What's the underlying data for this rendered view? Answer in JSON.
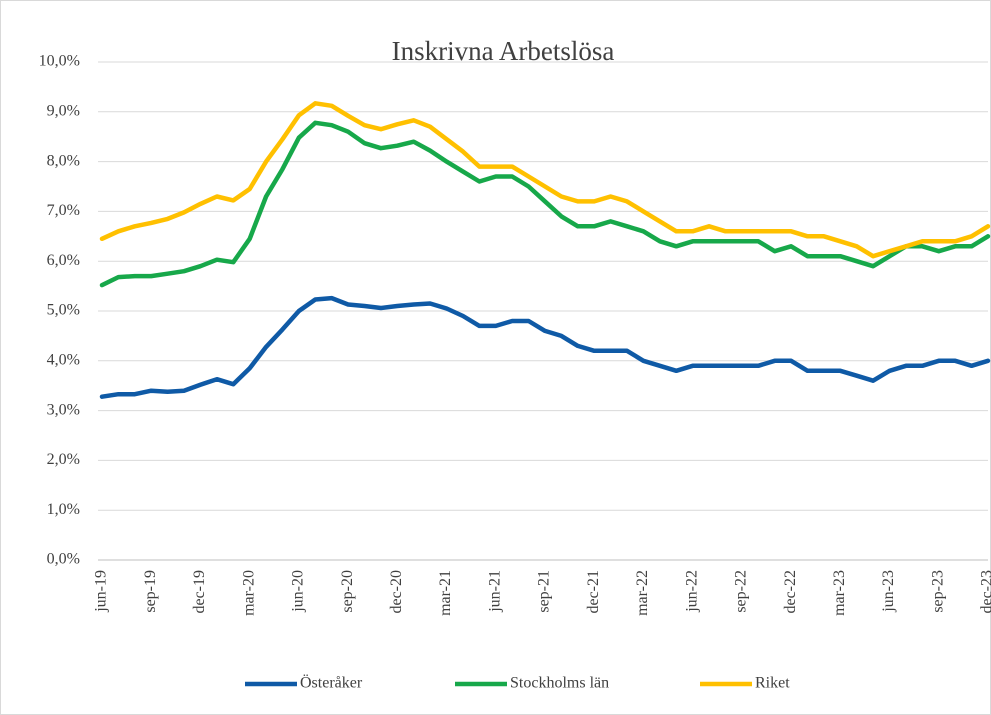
{
  "chart_data": {
    "type": "line",
    "title": "Inskrivna Arbetslösa",
    "categories": [
      "jun-19",
      null,
      null,
      "sep-19",
      null,
      null,
      "dec-19",
      null,
      null,
      "mar-20",
      null,
      null,
      "jun-20",
      null,
      null,
      "sep-20",
      null,
      null,
      "dec-20",
      null,
      null,
      "mar-21",
      null,
      null,
      "jun-21",
      null,
      null,
      "sep-21",
      null,
      null,
      "dec-21",
      null,
      null,
      "mar-22",
      null,
      null,
      "jun-22",
      null,
      null,
      "sep-22",
      null,
      null,
      "dec-22",
      null,
      null,
      "mar-23",
      null,
      null,
      "jun-23",
      null,
      null,
      "sep-23",
      null,
      null,
      "dec-23"
    ],
    "series": [
      {
        "name": "Österåker",
        "color": "#0f5aa6",
        "values": [
          3.28,
          3.33,
          3.33,
          3.4,
          3.38,
          3.4,
          3.52,
          3.63,
          3.53,
          3.85,
          4.28,
          4.63,
          5.0,
          5.23,
          5.26,
          5.13,
          5.1,
          5.06,
          5.1,
          5.13,
          5.15,
          5.05,
          4.9,
          4.7,
          4.7,
          4.8,
          4.8,
          4.6,
          4.5,
          4.3,
          4.2,
          4.2,
          4.2,
          4.0,
          3.9,
          3.8,
          3.9,
          3.9,
          3.9,
          3.9,
          3.9,
          4.0,
          4.0,
          3.8,
          3.8,
          3.8,
          3.7,
          3.6,
          3.8,
          3.9,
          3.9,
          4.0,
          4.0,
          3.9,
          4.0
        ]
      },
      {
        "name": "Stockholms län",
        "color": "#17a84a",
        "values": [
          5.52,
          5.68,
          5.7,
          5.7,
          5.75,
          5.8,
          5.9,
          6.03,
          5.98,
          6.45,
          7.3,
          7.85,
          8.48,
          8.78,
          8.73,
          8.6,
          8.37,
          8.27,
          8.32,
          8.4,
          8.22,
          8.0,
          7.8,
          7.6,
          7.7,
          7.7,
          7.5,
          7.2,
          6.9,
          6.7,
          6.7,
          6.8,
          6.7,
          6.6,
          6.4,
          6.3,
          6.4,
          6.4,
          6.4,
          6.4,
          6.4,
          6.2,
          6.3,
          6.1,
          6.1,
          6.1,
          6.0,
          5.9,
          6.1,
          6.3,
          6.3,
          6.2,
          6.3,
          6.3,
          6.5
        ]
      },
      {
        "name": "Riket",
        "color": "#ffc000",
        "values": [
          6.45,
          6.6,
          6.7,
          6.77,
          6.85,
          6.98,
          7.15,
          7.3,
          7.22,
          7.45,
          8.0,
          8.45,
          8.93,
          9.17,
          9.12,
          8.92,
          8.73,
          8.65,
          8.75,
          8.83,
          8.7,
          8.45,
          8.2,
          7.9,
          7.9,
          7.9,
          7.7,
          7.5,
          7.3,
          7.2,
          7.2,
          7.3,
          7.2,
          7.0,
          6.8,
          6.6,
          6.6,
          6.7,
          6.6,
          6.6,
          6.6,
          6.6,
          6.6,
          6.5,
          6.5,
          6.4,
          6.3,
          6.1,
          6.2,
          6.3,
          6.4,
          6.4,
          6.4,
          6.5,
          6.7
        ]
      }
    ],
    "ylim": [
      0,
      10
    ],
    "yticks": [
      {
        "value": 0,
        "label": "0,0%"
      },
      {
        "value": 1,
        "label": "1,0%"
      },
      {
        "value": 2,
        "label": "2,0%"
      },
      {
        "value": 3,
        "label": "3,0%"
      },
      {
        "value": 4,
        "label": "4,0%"
      },
      {
        "value": 5,
        "label": "5,0%"
      },
      {
        "value": 6,
        "label": "6,0%"
      },
      {
        "value": 7,
        "label": "7,0%"
      },
      {
        "value": 8,
        "label": "8,0%"
      },
      {
        "value": 9,
        "label": "9,0%"
      },
      {
        "value": 10,
        "label": "10,0%"
      }
    ],
    "grid": true,
    "legend": "bottom"
  }
}
